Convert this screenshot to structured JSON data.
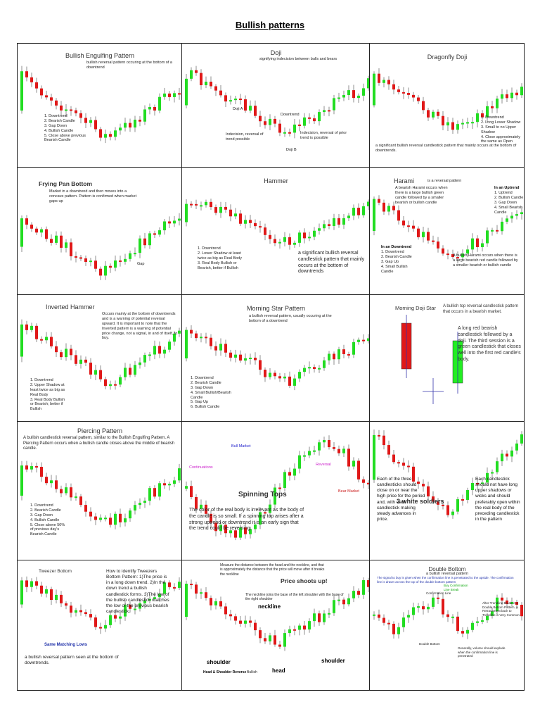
{
  "header": {
    "title": "Bullish patterns"
  },
  "cells": [
    {
      "title": "Bullish Engulfing Pattern",
      "texts": [
        "bullish reversal pattern occuring at the bottom of a downtrend"
      ],
      "lists": [
        [
          "1. Downtrend",
          "2. Bearish Candle",
          "3. Gap Down",
          "4. Bullish Candle",
          "5. Close above previous Bearish Candle"
        ]
      ]
    },
    {
      "title": "Doji",
      "texts": [
        "signifying indecision between bulls and bears",
        "Doji A",
        "Doji B",
        "Downtrend",
        "Indecision, reversal of trend possible",
        "Indecision, reversal of prior trend is possible"
      ],
      "lists": []
    },
    {
      "title": "Dragonfly Doji",
      "texts": [
        "a significant bullish reversal candlestick pattern that mainly occurs at the bottom of downtrends."
      ],
      "lists": [
        [
          "1. Downtrend",
          "2. Long Lower Shadow",
          "3. Small to no Upper Shadow",
          "4. Close approximately the same as Open"
        ]
      ]
    },
    {
      "title": "Frying Pan Bottom",
      "texts": [
        "Market in a downtrend and then moves into a concave pattern. Pattern is confirmed when market gaps up",
        "Gap"
      ],
      "lists": []
    },
    {
      "title": "Hammer",
      "texts": [
        "a significant bullish reversal candlestick pattern that mainly occurs at the bottom of downtrends"
      ],
      "lists": [
        [
          "1. Downtrend",
          "2. Lower Shadow at least twice as big as Real Body",
          "3. Real Body Bullish or Bearish, better if Bullish"
        ]
      ]
    },
    {
      "title": "Harami",
      "texts": [
        "is a reversal pattern",
        "A bearish Harami occurs when there is a large bullish green candle followed by a smaller bearish or bullish candle",
        "In an Uptrend",
        "In an Downtrend",
        "A bullish Harami occurs when there is a large bearish red candle followed by a smaller bearish or bullish candle"
      ],
      "lists": [
        [
          "1. Uptrend",
          "2. Bullish Candle",
          "3. Gap Down",
          "4. Small Bearish Candle"
        ],
        [
          "1. Downtrend",
          "2. Bearish Candle",
          "3. Gap Up",
          "4. Small Bullish Candle"
        ]
      ]
    },
    {
      "title": "Inverted Hammer",
      "texts": [
        "Occurs mainly at the bottom of downtrends and is a warning of potential reversal upward. It is important to note that the Inverted pattern is a warning of potential price change, not a signal, in and of itself, to buy."
      ],
      "lists": [
        [
          "1. Downtrend",
          "2. Upper Shadow at least twice as big as Real Body",
          "3. Real Body Bullish or Bearish; better if Bullish"
        ]
      ]
    },
    {
      "title": "Morning Star Pattern",
      "texts": [
        "a bullish reversal pattern, usually occuring at the bottom of a downtrend"
      ],
      "lists": [
        [
          "1. Downtrend",
          "2. Bearish Candle",
          "3. Gap Down",
          "4. Small Bullish/Bearish Candle",
          "5. Gap Up",
          "6. Bullish Candle"
        ]
      ]
    },
    {
      "title": "Morning Doji Star",
      "texts": [
        "A bullish top reversal candlestick pattern that occurs in a bearish market.",
        "A long red bearish candlestick followed by a doji. The third session is a green candlestick that closes well into the first red candle's body."
      ],
      "lists": []
    },
    {
      "title": "Piercing Pattern",
      "texts": [
        "A bullish candlestick reversal pattern, similar to the Bullish Engulfing Pattern. A Piercing Pattern occurs when a bullish candle closes above the middle of bearish candle."
      ],
      "lists": [
        [
          "1. Downtrend",
          "2. Bearish Candle",
          "3. Gap Down",
          "4. Bullish Candle",
          "5. Close above 50% of previous day's Bearish Candle"
        ]
      ]
    },
    {
      "title": "Spinning Tops",
      "texts": [
        "Bull Market",
        "Continuations",
        "Reversal",
        "Bear Market",
        "The color of the real body is irrelevant as the body of the candle is so small. If a spinning top arises after a strong uptrend or downtrend  it is an early sign that the trend could be reversing."
      ],
      "lists": []
    },
    {
      "title": "3 white soldiers",
      "texts": [
        "Each of the three candlesticks should close on or near the high price for the period and, with each candlestick making steady advances in price.",
        "Each candlestick should not have long upper shadows or wicks and should preferably open within the real body of the preceding candlestick in the pattern"
      ],
      "lists": []
    },
    {
      "title": "Tweezer Bottom",
      "texts": [
        "How to identify Tweezers Bottom Pattern: 1)The price is in a long down trend. 2)In the down trend a bullish candlestick forms. 3)The low of the bullish candlestick matches the low of the previous bearish candlestick.",
        "Same Matching Lows",
        "a bullish reversal pattern seen at the bottom of downtrends."
      ],
      "lists": []
    },
    {
      "title": "Price shoots up!",
      "texts": [
        "Measure the distance between the head and the neckline, and that is approximately the distance that the price will move after it breaks the neckline",
        "The neckline joins the base of the left shoulder with the base of the right shoulder",
        "neckline",
        "shoulder",
        "head",
        "shoulder",
        "Head & Shoulder Reverse",
        "Bullish"
      ],
      "lists": []
    },
    {
      "title": "Double Bottom",
      "texts": [
        "a bullish reversal pattern",
        "The signal to buy is given when the confirmation line is penetrated to the upside. The confirmation line is drawn across the top of the double bottom pattern",
        "Confirmation Line",
        "Buy Confirmation Line Break",
        "After Trendline Break in a Double Bottom Pattern, a Retracement back to Trendline is Very Common",
        "Double Bottom",
        "Generally, volume should explode when the confirmation line is penetrated"
      ],
      "lists": []
    }
  ]
}
